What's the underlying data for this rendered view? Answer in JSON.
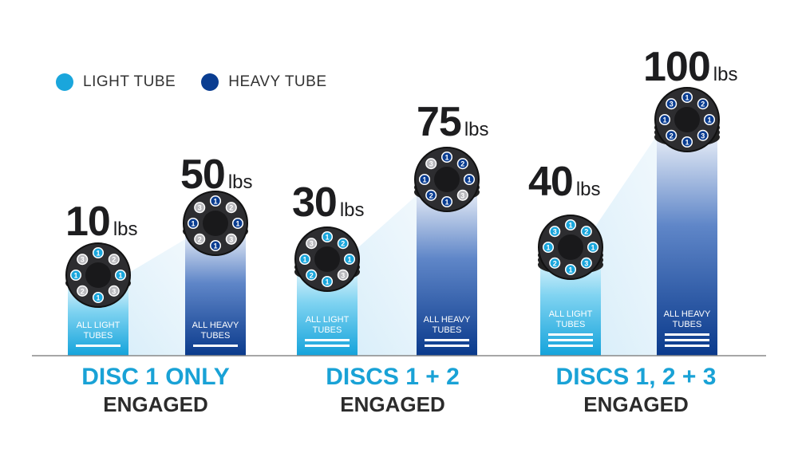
{
  "legend": {
    "light": {
      "label": "LIGHT TUBE",
      "color": "#1aa6dc"
    },
    "heavy": {
      "label": "HEAVY TUBE",
      "color": "#0a3d91"
    }
  },
  "chart_data": {
    "type": "bar",
    "categories": [
      "DISC 1 ONLY ENGAGED",
      "DISCS 1 + 2 ENGAGED",
      "DISCS 1, 2 + 3 ENGAGED"
    ],
    "unit": "lbs",
    "series": [
      {
        "name": "LIGHT TUBE",
        "values": [
          10,
          30,
          40
        ]
      },
      {
        "name": "HEAVY TUBE",
        "values": [
          50,
          75,
          100
        ]
      }
    ],
    "ylim": [
      0,
      100
    ]
  },
  "bars": [
    {
      "value": "10",
      "unit": "lbs",
      "label": "ALL LIGHT TUBES",
      "type": "light",
      "discs": 1
    },
    {
      "value": "50",
      "unit": "lbs",
      "label": "ALL HEAVY TUBES",
      "type": "heavy",
      "discs": 1
    },
    {
      "value": "30",
      "unit": "lbs",
      "label": "ALL LIGHT TUBES",
      "type": "light",
      "discs": 2
    },
    {
      "value": "75",
      "unit": "lbs",
      "label": "ALL HEAVY TUBES",
      "type": "heavy",
      "discs": 2
    },
    {
      "value": "40",
      "unit": "lbs",
      "label": "ALL LIGHT TUBES",
      "type": "light",
      "discs": 3
    },
    {
      "value": "100",
      "unit": "lbs",
      "label": "ALL HEAVY TUBES",
      "type": "heavy",
      "discs": 3
    }
  ],
  "groups": [
    {
      "line1": "DISC 1 ONLY",
      "line2": "ENGAGED"
    },
    {
      "line1": "DISCS 1 + 2",
      "line2": "ENGAGED"
    },
    {
      "line1": "DISCS 1, 2 + 3",
      "line2": "ENGAGED"
    }
  ]
}
